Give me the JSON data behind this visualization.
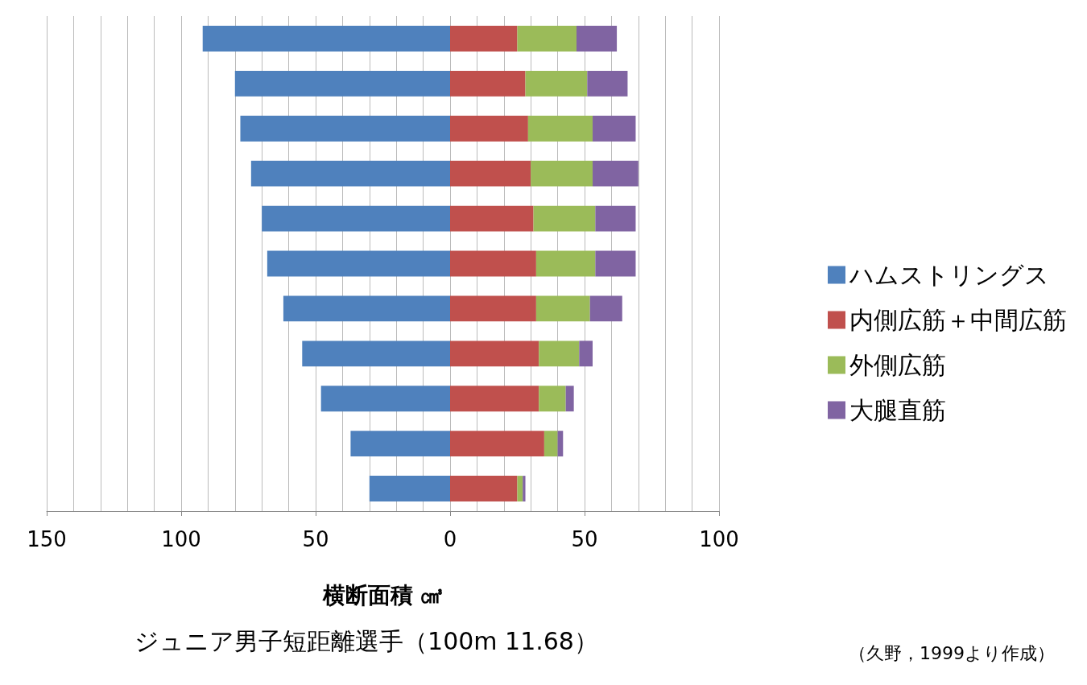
{
  "chart_data": {
    "type": "bar",
    "orientation": "horizontal",
    "stacked": true,
    "title": "ジュニア男子短距離選手（100m 11.68）",
    "xlabel": "横断面積 ㎤",
    "annotations": [
      "（久野，1999より作成）"
    ],
    "categories": [
      null,
      null,
      null,
      null,
      null,
      null,
      null,
      null,
      null,
      null,
      null
    ],
    "series": [
      {
        "name": "ハムストリングス",
        "color": "#4f81bd",
        "values": [
          -92,
          -80,
          -78,
          -74,
          -70,
          -68,
          -62,
          -55,
          -48,
          -37,
          -30
        ]
      },
      {
        "name": "内側広筋＋中間広筋",
        "color": "#c0504d",
        "values": [
          25,
          28,
          29,
          30,
          31,
          32,
          32,
          33,
          33,
          35,
          25
        ]
      },
      {
        "name": "外側広筋",
        "color": "#9bbb59",
        "values": [
          22,
          23,
          24,
          23,
          23,
          22,
          20,
          15,
          10,
          5,
          2
        ]
      },
      {
        "name": "大腿直筋",
        "color": "#8064a2",
        "values": [
          15,
          15,
          16,
          17,
          15,
          15,
          12,
          5,
          3,
          2,
          1
        ]
      }
    ],
    "xlim": [
      -150,
      100
    ],
    "xticks": [
      {
        "value": -150,
        "label": "150"
      },
      {
        "value": -100,
        "label": "100"
      },
      {
        "value": -50,
        "label": "50"
      },
      0,
      50,
      100
    ],
    "grid": "x",
    "legend": "right"
  }
}
